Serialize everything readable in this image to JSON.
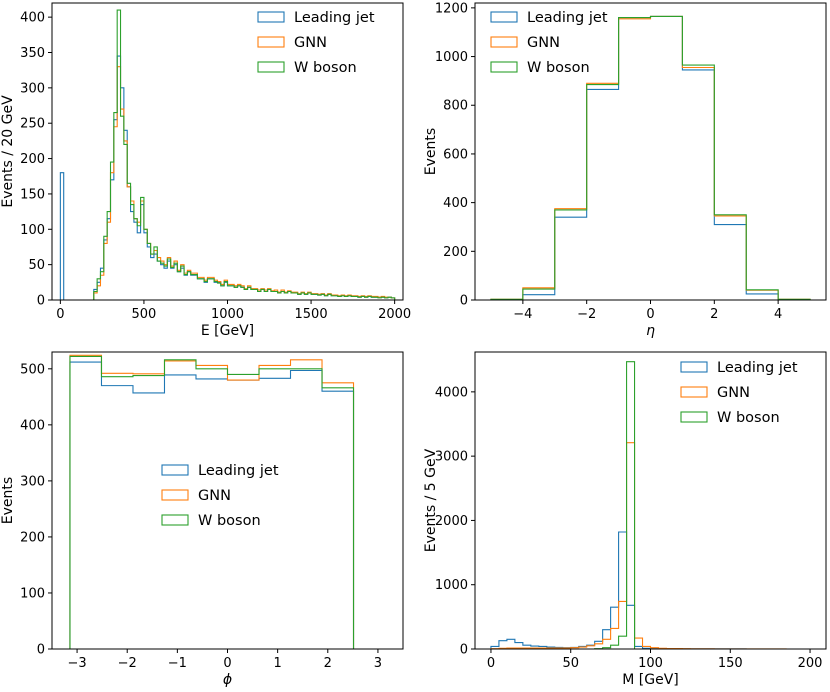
{
  "colors": {
    "leading": "#1f77b4",
    "gnn": "#ff7f0e",
    "wboson": "#2ca02c"
  },
  "legend": {
    "leading": "Leading jet",
    "gnn": "GNN",
    "wboson": "W boson"
  },
  "chart_data": [
    {
      "type": "histogram",
      "xlabel": "E [GeV]",
      "ylabel": "Events / 20 GeV",
      "xlim": [
        -50,
        2050
      ],
      "ylim": [
        0,
        420
      ],
      "xticks": [
        0,
        500,
        1000,
        1500,
        2000
      ],
      "yticks": [
        0,
        50,
        100,
        150,
        200,
        250,
        300,
        350,
        400
      ],
      "legend_loc": "upper right",
      "bin_edges_start": 0,
      "bin_width": 20,
      "series": [
        {
          "key": "leading",
          "name": "Leading jet",
          "values": [
            180,
            0,
            0,
            0,
            0,
            0,
            0,
            0,
            0,
            0,
            15,
            25,
            45,
            85,
            115,
            170,
            255,
            345,
            300,
            240,
            160,
            125,
            110,
            95,
            135,
            95,
            75,
            60,
            65,
            55,
            50,
            45,
            55,
            45,
            50,
            40,
            45,
            35,
            40,
            35,
            35,
            30,
            30,
            25,
            30,
            30,
            25,
            25,
            20,
            25,
            20,
            20,
            18,
            20,
            18,
            15,
            18,
            15,
            15,
            12,
            15,
            12,
            15,
            12,
            12,
            10,
            12,
            10,
            12,
            10,
            10,
            8,
            10,
            8,
            10,
            8,
            8,
            7,
            8,
            6,
            8,
            6,
            6,
            5,
            6,
            5,
            6,
            5,
            5,
            4,
            5,
            4,
            5,
            4,
            4,
            4,
            4,
            3,
            4,
            3
          ]
        },
        {
          "key": "gnn",
          "name": "GNN",
          "values": [
            0,
            0,
            0,
            0,
            0,
            0,
            0,
            0,
            0,
            0,
            10,
            20,
            35,
            80,
            110,
            180,
            245,
            330,
            270,
            225,
            160,
            140,
            115,
            110,
            140,
            100,
            80,
            65,
            70,
            60,
            55,
            50,
            60,
            48,
            55,
            42,
            50,
            38,
            42,
            38,
            38,
            32,
            32,
            28,
            32,
            32,
            28,
            26,
            22,
            28,
            22,
            22,
            20,
            22,
            20,
            16,
            20,
            16,
            16,
            14,
            16,
            14,
            16,
            13,
            14,
            11,
            14,
            11,
            13,
            11,
            11,
            9,
            11,
            9,
            11,
            9,
            9,
            8,
            9,
            7,
            9,
            7,
            7,
            6,
            7,
            6,
            7,
            6,
            6,
            5,
            6,
            5,
            6,
            5,
            5,
            4,
            5,
            4,
            4,
            3
          ]
        },
        {
          "key": "wboson",
          "name": "W boson",
          "values": [
            0,
            0,
            0,
            0,
            0,
            0,
            0,
            0,
            0,
            0,
            12,
            30,
            40,
            90,
            125,
            195,
            265,
            410,
            260,
            220,
            165,
            135,
            115,
            105,
            145,
            100,
            80,
            65,
            75,
            55,
            52,
            48,
            58,
            46,
            52,
            40,
            48,
            36,
            40,
            36,
            36,
            30,
            30,
            26,
            30,
            30,
            26,
            24,
            20,
            26,
            20,
            20,
            18,
            20,
            18,
            15,
            18,
            15,
            15,
            12,
            15,
            12,
            15,
            12,
            12,
            10,
            12,
            10,
            12,
            10,
            10,
            8,
            10,
            8,
            10,
            8,
            8,
            7,
            8,
            6,
            8,
            6,
            6,
            5,
            6,
            5,
            6,
            5,
            5,
            4,
            5,
            4,
            5,
            4,
            4,
            3,
            4,
            3,
            4,
            3
          ]
        }
      ]
    },
    {
      "type": "histogram",
      "xlabel": "η",
      "ylabel": "Events",
      "xlim": [
        -5.5,
        5.5
      ],
      "ylim": [
        0,
        1220
      ],
      "xticks": [
        -4,
        -2,
        0,
        2,
        4
      ],
      "yticks": [
        0,
        200,
        400,
        600,
        800,
        1000,
        1200
      ],
      "legend_loc": "upper left",
      "bin_edges_start": -5,
      "bin_width": 1,
      "series": [
        {
          "key": "leading",
          "name": "Leading jet",
          "values": [
            2,
            22,
            340,
            865,
            1160,
            1165,
            945,
            310,
            25,
            2
          ]
        },
        {
          "key": "gnn",
          "name": "GNN",
          "values": [
            3,
            50,
            375,
            890,
            1155,
            1165,
            955,
            345,
            40,
            3
          ]
        },
        {
          "key": "wboson",
          "name": "W boson",
          "values": [
            3,
            45,
            370,
            885,
            1160,
            1165,
            965,
            350,
            42,
            3
          ]
        }
      ]
    },
    {
      "type": "histogram",
      "xlabel": "ϕ",
      "ylabel": "Events",
      "xlim": [
        -3.5,
        3.5
      ],
      "ylim": [
        0,
        530
      ],
      "xticks": [
        -3,
        -2,
        -1,
        0,
        1,
        2,
        3
      ],
      "yticks": [
        0,
        100,
        200,
        300,
        400,
        500
      ],
      "legend_loc": "center",
      "bin_edges_start": -3.14159,
      "bin_width": 0.628318,
      "series": [
        {
          "key": "leading",
          "name": "Leading jet",
          "values": [
            512,
            470,
            457,
            489,
            482,
            480,
            483,
            497,
            460
          ]
        },
        {
          "key": "gnn",
          "name": "GNN",
          "values": [
            524,
            492,
            491,
            514,
            506,
            480,
            506,
            516,
            475
          ]
        },
        {
          "key": "wboson",
          "name": "W boson",
          "values": [
            522,
            486,
            488,
            516,
            500,
            490,
            500,
            500,
            466
          ]
        }
      ]
    },
    {
      "type": "histogram",
      "xlabel": "M [GeV]",
      "ylabel": "Events / 5 GeV",
      "xlim": [
        -10,
        210
      ],
      "ylim": [
        0,
        4620
      ],
      "xticks": [
        0,
        50,
        100,
        150,
        200
      ],
      "yticks": [
        0,
        1000,
        2000,
        3000,
        4000
      ],
      "legend_loc": "upper right",
      "bin_edges_start": 0,
      "bin_width": 5,
      "series": [
        {
          "key": "leading",
          "name": "Leading jet",
          "values": [
            40,
            130,
            150,
            100,
            60,
            45,
            40,
            30,
            25,
            20,
            25,
            40,
            60,
            120,
            300,
            650,
            1820,
            680,
            40,
            10,
            5,
            3,
            2,
            2,
            1,
            1,
            1,
            1,
            1,
            1,
            1,
            1,
            0,
            0,
            0,
            0,
            0,
            0,
            0,
            0
          ]
        },
        {
          "key": "gnn",
          "name": "GNN",
          "values": [
            5,
            10,
            15,
            15,
            15,
            15,
            15,
            15,
            15,
            15,
            20,
            30,
            50,
            80,
            150,
            320,
            740,
            3210,
            170,
            40,
            20,
            10,
            8,
            6,
            5,
            4,
            3,
            3,
            2,
            2,
            2,
            1,
            1,
            1,
            1,
            1,
            1,
            0,
            0,
            0
          ]
        },
        {
          "key": "wboson",
          "name": "W boson",
          "values": [
            0,
            0,
            0,
            0,
            0,
            0,
            0,
            0,
            0,
            0,
            0,
            0,
            0,
            5,
            20,
            60,
            200,
            4470,
            0,
            0,
            0,
            0,
            0,
            0,
            0,
            0,
            0,
            0,
            0,
            0,
            0,
            0,
            0,
            0,
            0,
            0,
            0,
            0,
            0,
            0
          ]
        }
      ]
    }
  ]
}
